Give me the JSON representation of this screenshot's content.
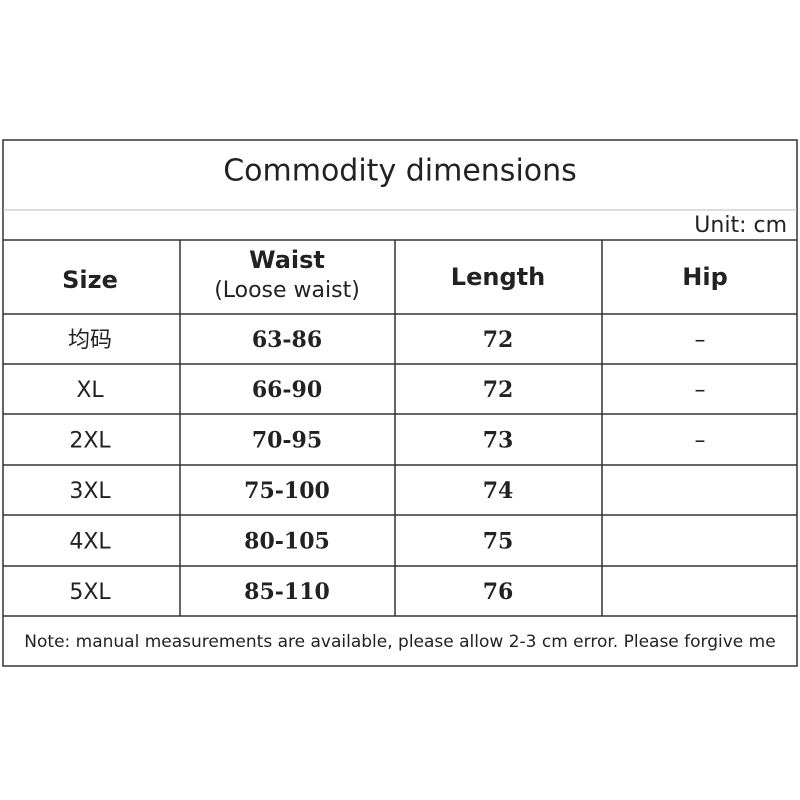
{
  "title": "Commodity dimensions",
  "unit": "Unit: cm",
  "table": {
    "header": [
      "Size",
      [
        "Waist",
        "(Loose waist)"
      ],
      "Length",
      "Hip"
    ],
    "rows": [
      [
        "均码",
        "63-86",
        72,
        "–"
      ],
      [
        "XL",
        "66-90",
        72,
        "–"
      ],
      [
        "2XL",
        "70-95",
        73,
        "–"
      ],
      [
        "3XL",
        "75-100",
        74
      ],
      [
        "4XL",
        "80-105",
        75
      ],
      [
        "5XL",
        "85-110",
        76
      ]
    ]
  },
  "note": "Note: manual measurements are available, please allow 2-3 cm error. Please forgive me"
}
